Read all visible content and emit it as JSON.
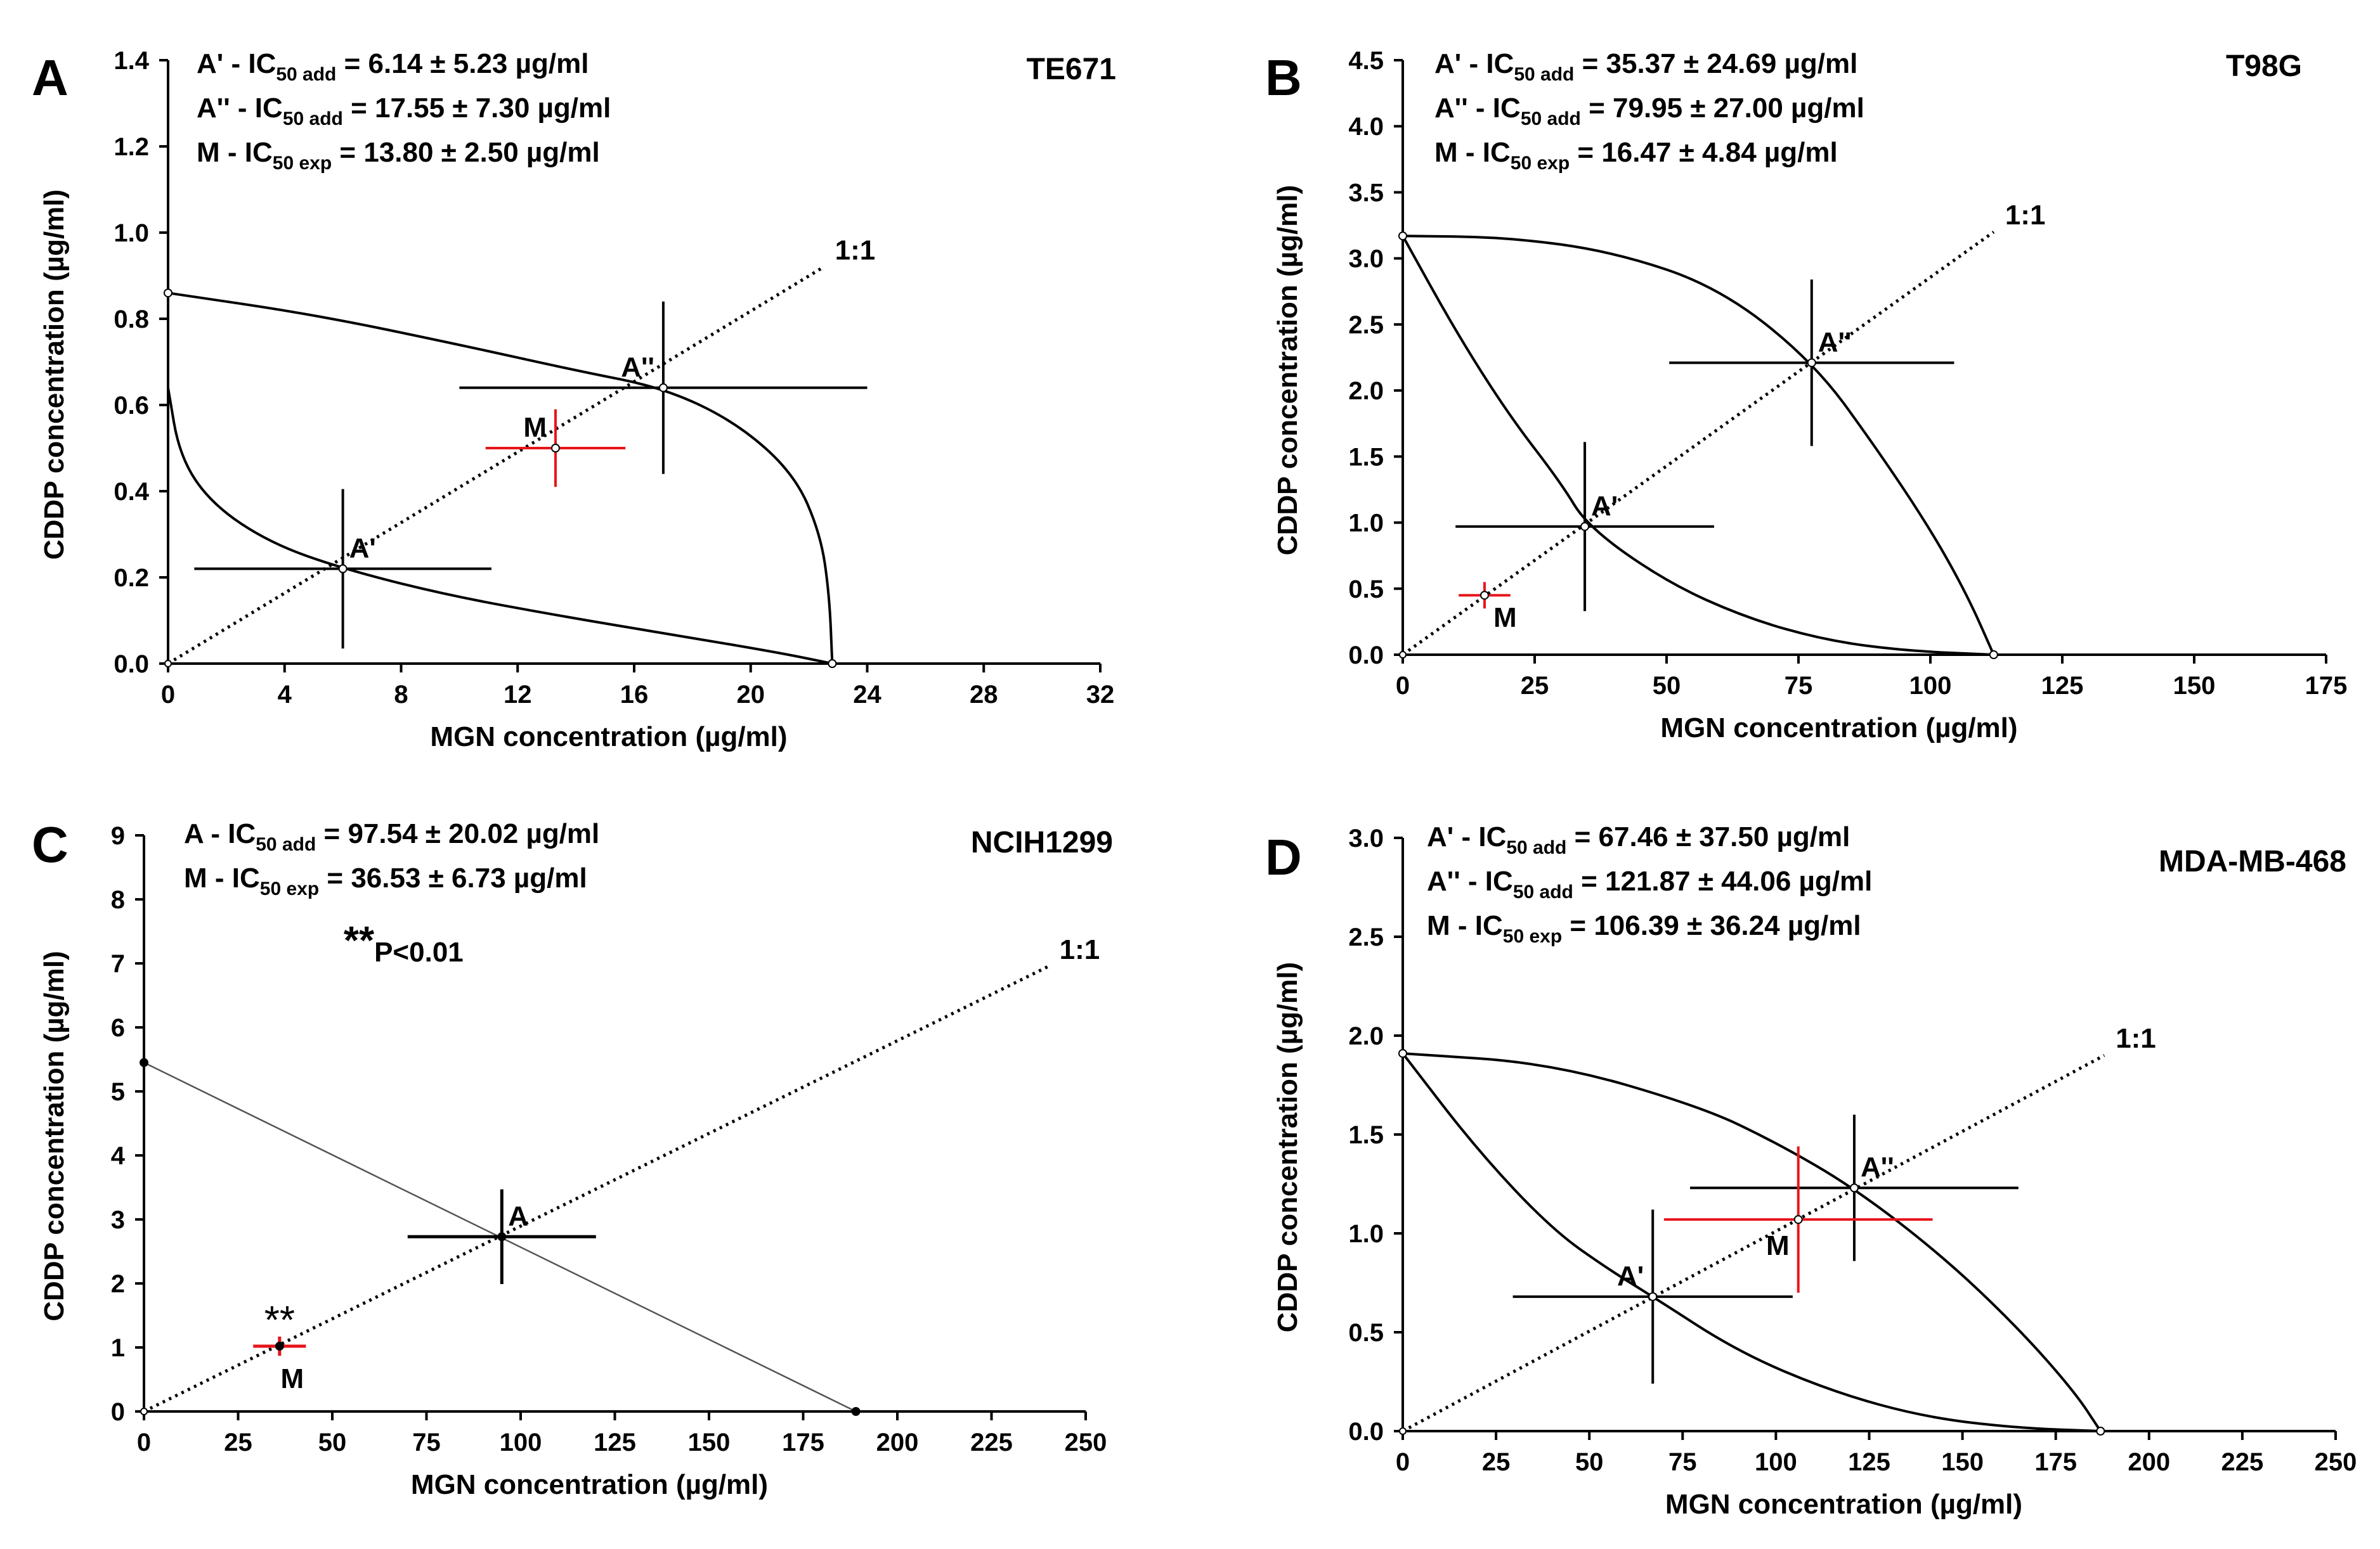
{
  "chart_data": [
    {
      "type": "scatter",
      "panel_letter": "A",
      "cell_line": "TE671",
      "xlabel": "MGN concentration (µg/ml)",
      "ylabel": "CDDP concentration (µg/ml)",
      "xlim": [
        0,
        32
      ],
      "ylim": [
        0,
        1.4
      ],
      "x_ticks": [
        "0",
        "4",
        "8",
        "12",
        "16",
        "20",
        "24",
        "28",
        "32"
      ],
      "y_ticks": [
        "0.0",
        "0.2",
        "0.4",
        "0.6",
        "0.8",
        "1.0",
        "1.2",
        "1.4"
      ],
      "annotations": [
        {
          "prefix": "A' - IC",
          "sub": "50 add",
          "suffix": " = 6.14 ± 5.23 µg/ml"
        },
        {
          "prefix": "A'' - IC",
          "sub": "50 add",
          "suffix": " = 17.55 ± 7.30 µg/ml"
        },
        {
          "prefix": "M - IC",
          "sub": "50 exp",
          "suffix": " = 13.80 ± 2.50 µg/ml"
        }
      ],
      "ratio_label": "1:1",
      "isobologram": {
        "y_intercept": 0.86,
        "x_intercept": 22.8,
        "lower_curve": [
          [
            0,
            0.64
          ],
          [
            0.4,
            0.48
          ],
          [
            1.5,
            0.37
          ],
          [
            3.5,
            0.28
          ],
          [
            6.0,
            0.22
          ],
          [
            9.5,
            0.16
          ],
          [
            13.5,
            0.11
          ],
          [
            17.5,
            0.065
          ],
          [
            21.0,
            0.025
          ],
          [
            22.8,
            0
          ]
        ],
        "upper_curve": [
          [
            0,
            0.86
          ],
          [
            5,
            0.81
          ],
          [
            10,
            0.74
          ],
          [
            14,
            0.68
          ],
          [
            17.0,
            0.64
          ],
          [
            19.5,
            0.56
          ],
          [
            21.5,
            0.44
          ],
          [
            22.4,
            0.3
          ],
          [
            22.7,
            0.16
          ],
          [
            22.8,
            0
          ]
        ]
      },
      "diagonal_end": [
        22.5,
        0.92
      ],
      "points": [
        {
          "label": "A'",
          "x": 6.0,
          "y": 0.22,
          "xerr": 5.1,
          "yerr": 0.185,
          "color": "#000000",
          "fill": "#ffffff",
          "label_pos": "above-right"
        },
        {
          "label": "A''",
          "x": 17.0,
          "y": 0.64,
          "xerr": 7.0,
          "yerr": 0.2,
          "color": "#000000",
          "fill": "#ffffff",
          "label_pos": "above-left"
        },
        {
          "label": "M",
          "x": 13.3,
          "y": 0.5,
          "xerr": 2.4,
          "yerr": 0.09,
          "color": "#e8141b",
          "fill": "#ffffff",
          "label_pos": "above-left"
        }
      ]
    },
    {
      "type": "scatter",
      "panel_letter": "B",
      "cell_line": "T98G",
      "xlabel": "MGN concentration (µg/ml)",
      "ylabel": "CDDP concentration (µg/ml)",
      "xlim": [
        0,
        175
      ],
      "ylim": [
        0,
        4.5
      ],
      "x_ticks": [
        "0",
        "25",
        "50",
        "75",
        "100",
        "125",
        "150",
        "175"
      ],
      "y_ticks": [
        "0.0",
        "0.5",
        "1.0",
        "1.5",
        "2.0",
        "2.5",
        "3.0",
        "3.5",
        "4.0",
        "4.5"
      ],
      "annotations": [
        {
          "prefix": "A' - IC",
          "sub": "50 add",
          "suffix": " = 35.37 ± 24.69 µg/ml"
        },
        {
          "prefix": "A'' - IC",
          "sub": "50 add",
          "suffix": " = 79.95 ± 27.00 µg/ml"
        },
        {
          "prefix": "M - IC",
          "sub": "50 exp",
          "suffix": " = 16.47 ± 4.84 µg/ml"
        }
      ],
      "ratio_label": "1:1",
      "isobologram": {
        "y_intercept": 3.17,
        "x_intercept": 112,
        "lower_curve": [
          [
            0,
            3.17
          ],
          [
            10,
            2.45
          ],
          [
            20,
            1.82
          ],
          [
            30,
            1.3
          ],
          [
            35,
            0.97
          ],
          [
            50,
            0.55
          ],
          [
            65,
            0.28
          ],
          [
            80,
            0.11
          ],
          [
            95,
            0.03
          ],
          [
            112,
            0
          ]
        ],
        "upper_curve": [
          [
            0,
            3.17
          ],
          [
            20,
            3.16
          ],
          [
            40,
            3.05
          ],
          [
            60,
            2.78
          ],
          [
            78,
            2.21
          ],
          [
            90,
            1.55
          ],
          [
            100,
            0.95
          ],
          [
            107,
            0.45
          ],
          [
            112,
            0
          ]
        ]
      },
      "diagonal_end": [
        112,
        3.2
      ],
      "points": [
        {
          "label": "A'",
          "x": 34.5,
          "y": 0.97,
          "xerr": 24.5,
          "yerr": 0.64,
          "color": "#000000",
          "fill": "#ffffff",
          "label_pos": "above-right"
        },
        {
          "label": "A''",
          "x": 77.5,
          "y": 2.21,
          "xerr": 27.0,
          "yerr": 0.63,
          "color": "#000000",
          "fill": "#ffffff",
          "label_pos": "above-right"
        },
        {
          "label": "M",
          "x": 15.5,
          "y": 0.45,
          "xerr": 4.9,
          "yerr": 0.1,
          "color": "#e8141b",
          "fill": "#ffffff",
          "label_pos": "below-right"
        }
      ]
    },
    {
      "type": "scatter",
      "panel_letter": "C",
      "cell_line": "NCIH1299",
      "xlabel": "MGN concentration (µg/ml)",
      "ylabel": "CDDP concentration (µg/ml)",
      "xlim": [
        0,
        250
      ],
      "ylim": [
        0,
        9
      ],
      "x_ticks": [
        "0",
        "25",
        "50",
        "75",
        "100",
        "125",
        "150",
        "175",
        "200",
        "225",
        "250"
      ],
      "y_ticks": [
        "0",
        "1",
        "2",
        "3",
        "4",
        "5",
        "6",
        "7",
        "8",
        "9"
      ],
      "annotations": [
        {
          "prefix": "A - IC",
          "sub": "50 add",
          "suffix": " = 97.54 ± 20.02 µg/ml"
        },
        {
          "prefix": "M - IC",
          "sub": "50 exp",
          "suffix": " = 36.53 ± 6.73 µg/ml"
        }
      ],
      "significance": {
        "stars": "**",
        "text": "P<0.01"
      },
      "ratio_label": "1:1",
      "isobologram": {
        "y_intercept": 5.45,
        "x_intercept": 189,
        "lower_curve": [
          [
            0,
            5.45
          ],
          [
            189,
            0
          ]
        ],
        "upper_curve": []
      },
      "diagonal_end": [
        240,
        6.95
      ],
      "points": [
        {
          "label": "A",
          "x": 95.0,
          "y": 2.73,
          "xerr": 25.0,
          "yerr": 0.74,
          "color": "#000000",
          "fill": "#000000",
          "label_pos": "above-right"
        },
        {
          "label": "M",
          "x": 36.0,
          "y": 1.02,
          "xerr": 7.0,
          "yerr": 0.15,
          "color": "#e8141b",
          "fill": "#000000",
          "label_pos": "below",
          "stars": "**"
        }
      ]
    },
    {
      "type": "scatter",
      "panel_letter": "D",
      "cell_line": "MDA-MB-468",
      "xlabel": "MGN concentration (µg/ml)",
      "ylabel": "CDDP concentration (µg/ml)",
      "xlim": [
        0,
        250
      ],
      "ylim": [
        0,
        3.0
      ],
      "x_ticks": [
        "0",
        "25",
        "50",
        "75",
        "100",
        "125",
        "150",
        "175",
        "200",
        "225",
        "250"
      ],
      "y_ticks": [
        "0.0",
        "0.5",
        "1.0",
        "1.5",
        "2.0",
        "2.5",
        "3.0"
      ],
      "annotations": [
        {
          "prefix": "A' - IC",
          "sub": "50 add",
          "suffix": " = 67.46 ± 37.50 µg/ml"
        },
        {
          "prefix": "A'' - IC",
          "sub": "50 add",
          "suffix": " = 121.87 ± 44.06 µg/ml"
        },
        {
          "prefix": "M - IC",
          "sub": "50 exp",
          "suffix": " = 106.39 ± 36.24 µg/ml"
        }
      ],
      "ratio_label": "1:1",
      "isobologram": {
        "y_intercept": 1.91,
        "x_intercept": 187,
        "lower_curve": [
          [
            0,
            1.91
          ],
          [
            20,
            1.42
          ],
          [
            40,
            1.02
          ],
          [
            55,
            0.82
          ],
          [
            67,
            0.68
          ],
          [
            90,
            0.4
          ],
          [
            115,
            0.2
          ],
          [
            140,
            0.07
          ],
          [
            165,
            0.015
          ],
          [
            187,
            0
          ]
        ],
        "upper_curve": [
          [
            0,
            1.91
          ],
          [
            40,
            1.86
          ],
          [
            80,
            1.64
          ],
          [
            100,
            1.46
          ],
          [
            121,
            1.23
          ],
          [
            145,
            0.88
          ],
          [
            165,
            0.52
          ],
          [
            180,
            0.2
          ],
          [
            187,
            0
          ]
        ]
      },
      "diagonal_end": [
        188,
        1.9
      ],
      "points": [
        {
          "label": "A'",
          "x": 67.0,
          "y": 0.68,
          "xerr": 37.5,
          "yerr": 0.44,
          "color": "#000000",
          "fill": "#ffffff",
          "label_pos": "above-left"
        },
        {
          "label": "A''",
          "x": 121.0,
          "y": 1.23,
          "xerr": 44.0,
          "yerr": 0.37,
          "color": "#000000",
          "fill": "#ffffff",
          "label_pos": "above-right"
        },
        {
          "label": "M",
          "x": 106.0,
          "y": 1.07,
          "xerr": 36.0,
          "yerr": 0.37,
          "color": "#e8141b",
          "fill": "#ffffff",
          "label_pos": "below-left"
        }
      ]
    }
  ]
}
